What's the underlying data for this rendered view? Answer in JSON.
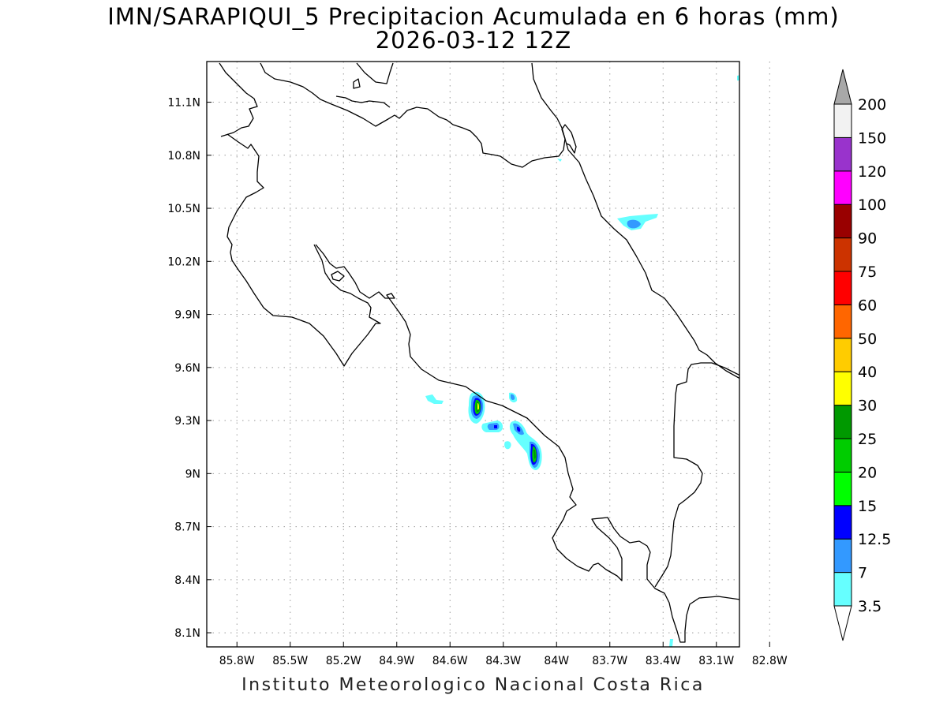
{
  "title_line1": "IMN/SARAPIQUI_5 Precipitacion Acumulada en 6 horas (mm)",
  "title_line2": "2026-03-12 12Z",
  "footer": "Instituto Meteorologico Nacional Costa Rica",
  "map": {
    "lon_labels": [
      "85.8W",
      "85.5W",
      "85.2W",
      "84.9W",
      "84.6W",
      "84.3W",
      "84W",
      "83.7W",
      "83.4W",
      "83.1W",
      "82.8W"
    ],
    "lon_values": [
      -85.8,
      -85.5,
      -85.2,
      -84.9,
      -84.6,
      -84.3,
      -84.0,
      -83.7,
      -83.4,
      -83.1,
      -82.8
    ],
    "lat_labels": [
      "11.1N",
      "10.8N",
      "10.5N",
      "10.2N",
      "9.9N",
      "9.6N",
      "9.3N",
      "9N",
      "8.7N",
      "8.4N",
      "8.1N"
    ],
    "lat_values": [
      11.1,
      10.8,
      10.5,
      10.2,
      9.9,
      9.6,
      9.3,
      9.0,
      8.7,
      8.4,
      8.1
    ],
    "lon_range": [
      -85.97,
      -82.97
    ],
    "lat_range": [
      8.02,
      11.33
    ],
    "grid": "dotted",
    "colors": {
      "coastline": "#000000",
      "grid": "#9a9a9a"
    }
  },
  "colorbar": {
    "levels": [
      "3.5",
      "7",
      "12.5",
      "15",
      "20",
      "25",
      "30",
      "40",
      "50",
      "60",
      "75",
      "90",
      "100",
      "120",
      "150",
      "200"
    ],
    "bins": [
      {
        "from": "3.5",
        "to": "7",
        "color": "#66ffff"
      },
      {
        "from": "7",
        "to": "12.5",
        "color": "#3399ff"
      },
      {
        "from": "12.5",
        "to": "15",
        "color": "#0000ff"
      },
      {
        "from": "15",
        "to": "20",
        "color": "#00ff00"
      },
      {
        "from": "20",
        "to": "25",
        "color": "#00cc00"
      },
      {
        "from": "25",
        "to": "30",
        "color": "#009900"
      },
      {
        "from": "30",
        "to": "40",
        "color": "#ffff00"
      },
      {
        "from": "40",
        "to": "50",
        "color": "#ffcc00"
      },
      {
        "from": "50",
        "to": "60",
        "color": "#ff6600"
      },
      {
        "from": "60",
        "to": "75",
        "color": "#ff0000"
      },
      {
        "from": "75",
        "to": "90",
        "color": "#cc3300"
      },
      {
        "from": "90",
        "to": "100",
        "color": "#990000"
      },
      {
        "from": "100",
        "to": "120",
        "color": "#ff00ff"
      },
      {
        "from": "120",
        "to": "150",
        "color": "#9933cc"
      },
      {
        "from": "150",
        "to": "200",
        "color": "#f2f2f2"
      }
    ],
    "over_color": "#a8a8a8",
    "under_color": "#ffffff"
  }
}
